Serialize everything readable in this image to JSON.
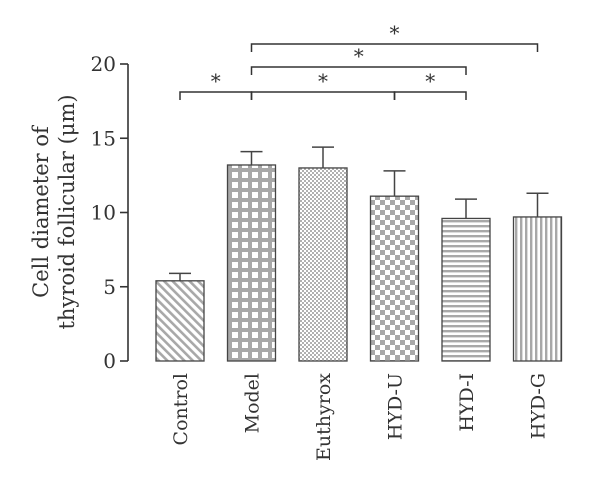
{
  "chart_data": {
    "type": "bar",
    "categories": [
      "Control",
      "Model",
      "Euthyrox",
      "HYD-U",
      "HYD-I",
      "HYD-G"
    ],
    "values": [
      5.4,
      13.2,
      13.0,
      11.1,
      9.6,
      9.7
    ],
    "errors": [
      0.5,
      0.9,
      1.4,
      1.7,
      1.3,
      1.6
    ],
    "ylabel_lines": [
      "Cell diameter of",
      "thyroid follicular (μm)"
    ],
    "ylim": [
      0,
      20
    ],
    "yticks": [
      "0",
      "5",
      "10",
      "15",
      "20"
    ],
    "patterns": [
      "diagonal-hatch",
      "grid",
      "fine-dots",
      "checker",
      "horizontal-lines",
      "vertical-lines"
    ],
    "significance": [
      {
        "from": "Control",
        "to": "Model",
        "label": "*"
      },
      {
        "from": "Model",
        "to": "HYD-U",
        "label": "*"
      },
      {
        "from": "HYD-U",
        "to": "HYD-I",
        "label": "*"
      },
      {
        "from": "Model",
        "to": "HYD-I",
        "label": "*"
      },
      {
        "from": "Model",
        "to": "HYD-G",
        "label": "*"
      }
    ],
    "grid": false,
    "bar_color": "#a8a8a8",
    "axis_color": "#333333"
  }
}
